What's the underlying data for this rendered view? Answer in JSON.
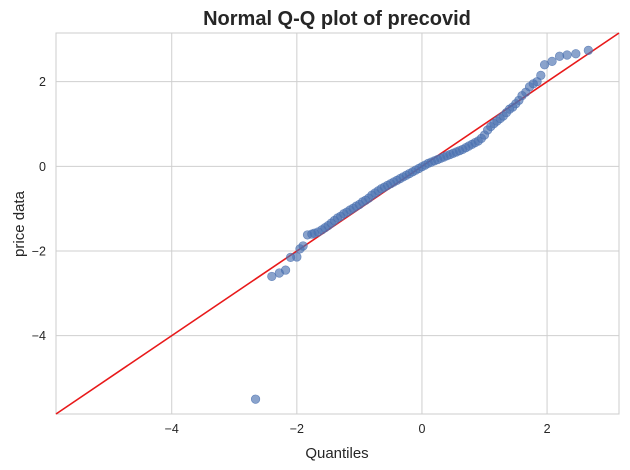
{
  "chart_data": {
    "type": "scatter",
    "title": "Normal Q-Q plot of precovid",
    "xlabel": "Quantiles",
    "ylabel": "price data",
    "xlim": [
      -5.85,
      3.15
    ],
    "ylim": [
      -5.85,
      3.15
    ],
    "xticks": [
      -4,
      -2,
      0,
      2
    ],
    "xtick_labels": [
      "−4",
      "−2",
      "0",
      "2"
    ],
    "yticks": [
      -4,
      -2,
      0,
      2
    ],
    "ytick_labels": [
      "−4",
      "−2",
      "0",
      "2"
    ],
    "grid": true,
    "legend": "none",
    "reference_line": {
      "slope": 1,
      "intercept": 0,
      "color": "#e8191a"
    },
    "point_color": "#4c72b0",
    "series": [
      {
        "points": [
          [
            -2.66,
            -5.5
          ],
          [
            -2.4,
            -2.6
          ],
          [
            -2.28,
            -2.52
          ],
          [
            -2.18,
            -2.45
          ],
          [
            -2.1,
            -2.15
          ],
          [
            -2.0,
            -2.14
          ],
          [
            -1.95,
            -1.95
          ],
          [
            -1.9,
            -1.88
          ],
          [
            -1.83,
            -1.62
          ],
          [
            -1.76,
            -1.6
          ],
          [
            -1.72,
            -1.58
          ],
          [
            -1.66,
            -1.55
          ],
          [
            -1.6,
            -1.5
          ],
          [
            -1.55,
            -1.45
          ],
          [
            -1.5,
            -1.4
          ],
          [
            -1.45,
            -1.34
          ],
          [
            -1.4,
            -1.28
          ],
          [
            -1.35,
            -1.22
          ],
          [
            -1.3,
            -1.18
          ],
          [
            -1.25,
            -1.12
          ],
          [
            -1.2,
            -1.08
          ],
          [
            -1.15,
            -1.03
          ],
          [
            -1.1,
            -0.99
          ],
          [
            -1.05,
            -0.94
          ],
          [
            -1.0,
            -0.9
          ],
          [
            -0.95,
            -0.84
          ],
          [
            -0.9,
            -0.8
          ],
          [
            -0.85,
            -0.75
          ],
          [
            -0.8,
            -0.68
          ],
          [
            -0.75,
            -0.63
          ],
          [
            -0.7,
            -0.58
          ],
          [
            -0.65,
            -0.53
          ],
          [
            -0.6,
            -0.49
          ],
          [
            -0.55,
            -0.45
          ],
          [
            -0.5,
            -0.41
          ],
          [
            -0.45,
            -0.37
          ],
          [
            -0.4,
            -0.33
          ],
          [
            -0.35,
            -0.29
          ],
          [
            -0.3,
            -0.25
          ],
          [
            -0.25,
            -0.21
          ],
          [
            -0.2,
            -0.17
          ],
          [
            -0.15,
            -0.13
          ],
          [
            -0.1,
            -0.09
          ],
          [
            -0.05,
            -0.05
          ],
          [
            0.0,
            -0.01
          ],
          [
            0.05,
            0.03
          ],
          [
            0.1,
            0.07
          ],
          [
            0.15,
            0.1
          ],
          [
            0.2,
            0.13
          ],
          [
            0.25,
            0.16
          ],
          [
            0.3,
            0.19
          ],
          [
            0.35,
            0.22
          ],
          [
            0.4,
            0.25
          ],
          [
            0.45,
            0.28
          ],
          [
            0.5,
            0.31
          ],
          [
            0.55,
            0.34
          ],
          [
            0.6,
            0.37
          ],
          [
            0.65,
            0.4
          ],
          [
            0.7,
            0.44
          ],
          [
            0.75,
            0.48
          ],
          [
            0.8,
            0.52
          ],
          [
            0.85,
            0.56
          ],
          [
            0.9,
            0.6
          ],
          [
            0.95,
            0.66
          ],
          [
            1.0,
            0.74
          ],
          [
            1.05,
            0.86
          ],
          [
            1.1,
            0.94
          ],
          [
            1.15,
            1.01
          ],
          [
            1.2,
            1.07
          ],
          [
            1.25,
            1.13
          ],
          [
            1.3,
            1.19
          ],
          [
            1.35,
            1.27
          ],
          [
            1.4,
            1.35
          ],
          [
            1.45,
            1.4
          ],
          [
            1.5,
            1.48
          ],
          [
            1.55,
            1.56
          ],
          [
            1.6,
            1.67
          ],
          [
            1.66,
            1.75
          ],
          [
            1.72,
            1.88
          ],
          [
            1.78,
            1.95
          ],
          [
            1.84,
            2.0
          ],
          [
            1.9,
            2.15
          ],
          [
            1.96,
            2.4
          ],
          [
            2.08,
            2.48
          ],
          [
            2.2,
            2.6
          ],
          [
            2.32,
            2.63
          ],
          [
            2.46,
            2.66
          ],
          [
            2.66,
            2.74
          ]
        ]
      }
    ]
  }
}
